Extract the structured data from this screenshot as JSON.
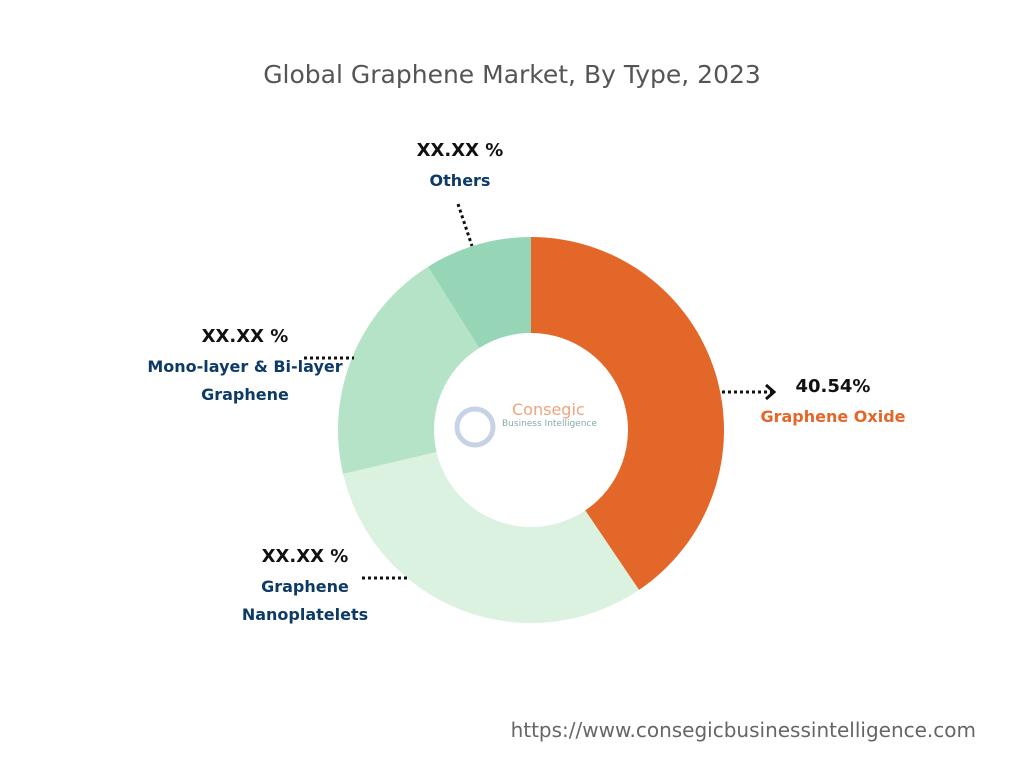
{
  "chart_data": {
    "type": "donut",
    "title": "Global Graphene Market, By Type, 2023",
    "categories": [
      "Graphene Oxide",
      "Graphene Nanoplatelets",
      "Mono-layer & Bi-layer Graphene",
      "Others"
    ],
    "values": [
      40.54,
      30.8,
      19.7,
      8.96
    ],
    "value_labels": [
      "40.54%",
      "XX.XX %",
      "XX.XX %",
      "XX.XX %"
    ],
    "colors": [
      "#e4672a",
      "#dcf2e0",
      "#b5e3c8",
      "#96d5b5"
    ],
    "label_colors": [
      "#e4672a",
      "#0d3b66",
      "#0d3b66",
      "#0d3b66"
    ]
  },
  "logo": {
    "name": "Consegic",
    "tagline": "Business Intelligence"
  },
  "footer": "https://www.consegicbusinessintelligence.com"
}
